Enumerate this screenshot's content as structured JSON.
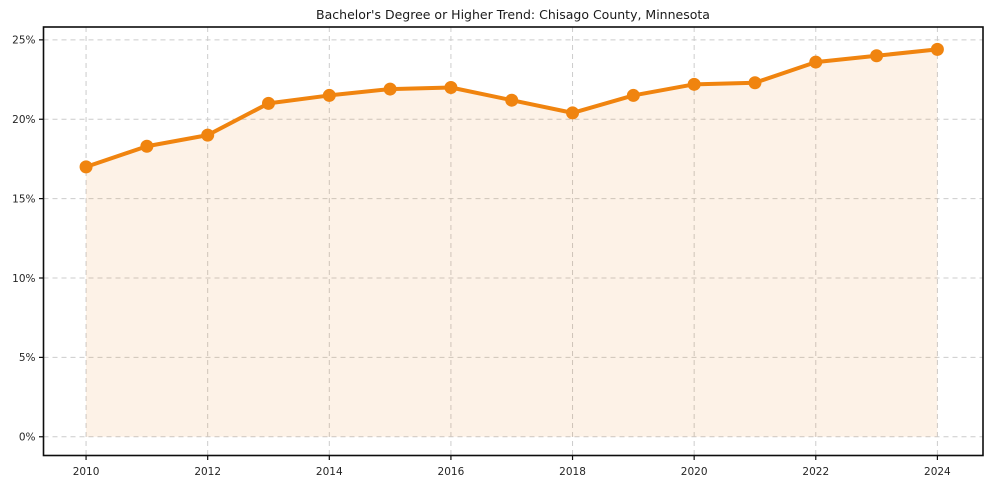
{
  "chart_data": {
    "type": "line",
    "title": "Bachelor's Degree or Higher Trend: Chisago County, Minnesota",
    "xlabel": "",
    "ylabel": "",
    "x": [
      2010,
      2011,
      2012,
      2013,
      2014,
      2015,
      2016,
      2017,
      2018,
      2019,
      2020,
      2021,
      2022,
      2023,
      2024
    ],
    "values": [
      17.0,
      18.3,
      19.0,
      21.0,
      21.5,
      21.9,
      22.0,
      21.2,
      20.4,
      21.5,
      22.2,
      22.3,
      23.6,
      24.0,
      24.4
    ],
    "series_name": "Bachelor's Degree or Higher (%)",
    "x_ticks": [
      2010,
      2012,
      2014,
      2016,
      2018,
      2020,
      2022,
      2024
    ],
    "y_ticks": [
      0,
      5,
      10,
      15,
      20,
      25
    ],
    "y_tick_suffix": "%",
    "xlim": [
      2009.3,
      2024.75
    ],
    "ylim": [
      -1.18,
      25.81
    ],
    "grid": true,
    "grid_style": "dashed",
    "legend": "none",
    "area_fill": true,
    "colors": {
      "line": "#f0840f",
      "fill": "rgba(240,132,15,0.10)",
      "grid": "#cccccc",
      "spine": "#0d0d0d",
      "text": "#262626",
      "title": "#1a1a1a",
      "background": "#ffffff"
    }
  }
}
